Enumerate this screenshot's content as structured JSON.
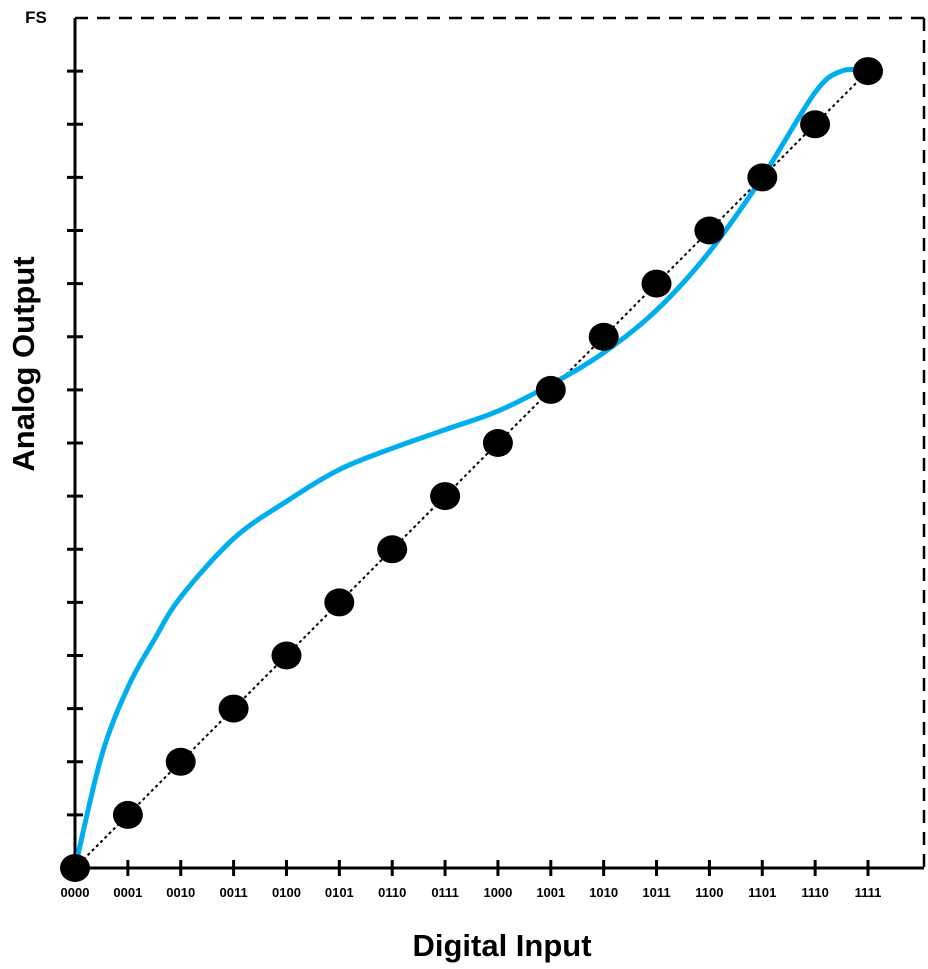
{
  "chart_data": {
    "type": "scatter",
    "xlabel": "Digital Input",
    "ylabel": "Analog Output",
    "y_top_label": "FS",
    "categories": [
      "0000",
      "0001",
      "0010",
      "0011",
      "0100",
      "0101",
      "0110",
      "0111",
      "1000",
      "1001",
      "1010",
      "1011",
      "1100",
      "1101",
      "1110",
      "1111"
    ],
    "xlim": [
      0,
      15
    ],
    "ylim": [
      0,
      16
    ],
    "y_tick_count": 16,
    "grid": false,
    "series": [
      {
        "kind": "points",
        "marker": "filled-circle",
        "connector": "dotted-line",
        "color": "#000000",
        "x": [
          0,
          1,
          2,
          3,
          4,
          5,
          6,
          7,
          8,
          9,
          10,
          11,
          12,
          13,
          14,
          15
        ],
        "values": [
          0,
          1,
          2,
          3,
          4,
          5,
          6,
          7,
          8,
          9,
          10,
          11,
          12,
          13,
          14,
          15
        ]
      },
      {
        "kind": "curve",
        "color": "#00aeef",
        "x": [
          0,
          0.5,
          1,
          1.5,
          2,
          3,
          4,
          5,
          6,
          7,
          8,
          9,
          10,
          11,
          12,
          13,
          14,
          14.5,
          15
        ],
        "values": [
          0,
          2.1,
          3.4,
          4.3,
          5.1,
          6.2,
          6.9,
          7.5,
          7.9,
          8.25,
          8.6,
          9.1,
          9.7,
          10.5,
          11.6,
          13.0,
          14.6,
          15.0,
          15.0
        ]
      }
    ]
  }
}
